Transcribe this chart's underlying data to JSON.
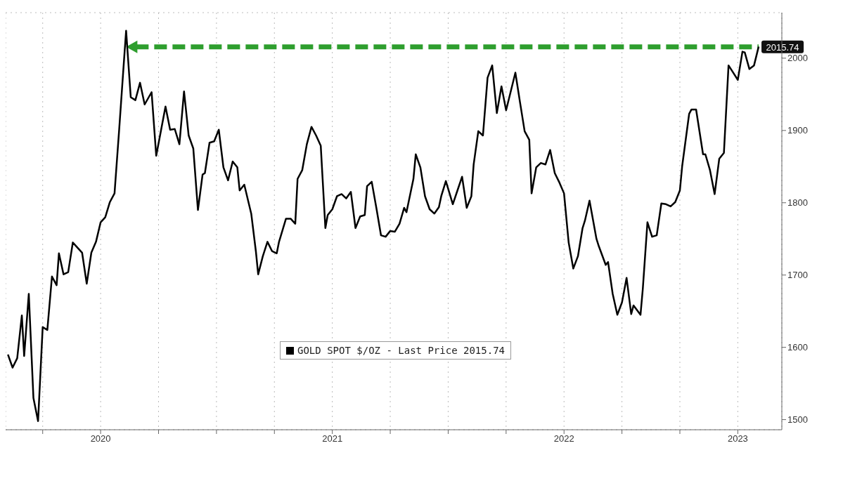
{
  "chart_data": {
    "type": "line",
    "x": [
      2020.1,
      2020.12,
      2020.14,
      2020.16,
      2020.17,
      2020.19,
      2020.21,
      2020.23,
      2020.25,
      2020.27,
      2020.29,
      2020.31,
      2020.32,
      2020.34,
      2020.36,
      2020.38,
      2020.42,
      2020.44,
      2020.46,
      2020.48,
      2020.5,
      2020.52,
      2020.54,
      2020.56,
      2020.58,
      2020.6,
      2020.61,
      2020.63,
      2020.65,
      2020.67,
      2020.69,
      2020.72,
      2020.74,
      2020.78,
      2020.8,
      2020.82,
      2020.84,
      2020.86,
      2020.88,
      2020.9,
      2020.92,
      2020.94,
      2020.95,
      2020.97,
      2020.99,
      2021.01,
      2021.03,
      2021.05,
      2021.07,
      2021.09,
      2021.1,
      2021.12,
      2021.15,
      2021.17,
      2021.18,
      2021.2,
      2021.22,
      2021.24,
      2021.26,
      2021.27,
      2021.3,
      2021.32,
      2021.34,
      2021.35,
      2021.37,
      2021.39,
      2021.41,
      2021.43,
      2021.45,
      2021.47,
      2021.48,
      2021.5,
      2021.52,
      2021.54,
      2021.56,
      2021.58,
      2021.6,
      2021.62,
      2021.64,
      2021.65,
      2021.67,
      2021.69,
      2021.71,
      2021.73,
      2021.75,
      2021.77,
      2021.79,
      2021.81,
      2021.82,
      2021.85,
      2021.86,
      2021.88,
      2021.9,
      2021.92,
      2021.94,
      2021.96,
      2021.97,
      2021.99,
      2022.02,
      2022.04,
      2022.06,
      2022.08,
      2022.1,
      2022.11,
      2022.13,
      2022.15,
      2022.17,
      2022.19,
      2022.21,
      2022.23,
      2022.25,
      2022.29,
      2022.31,
      2022.33,
      2022.35,
      2022.36,
      2022.38,
      2022.4,
      2022.42,
      2022.44,
      2022.46,
      2022.48,
      2022.5,
      2022.52,
      2022.54,
      2022.56,
      2022.58,
      2022.59,
      2022.61,
      2022.64,
      2022.65,
      2022.68,
      2022.69,
      2022.71,
      2022.73,
      2022.75,
      2022.77,
      2022.79,
      2022.8,
      2022.83,
      2022.84,
      2022.86,
      2022.88,
      2022.9,
      2022.92,
      2022.94,
      2022.96,
      2022.98,
      2023.0,
      2023.01,
      2023.04,
      2023.05,
      2023.07,
      2023.1,
      2023.11,
      2023.13,
      2023.15,
      2023.17,
      2023.19,
      2023.21,
      2023.23,
      2023.25,
      2023.27,
      2023.28,
      2023.3,
      2023.32,
      2023.34
    ],
    "series": [
      {
        "name": "GOLD SPOT $/OZ - Last Price 2015.74",
        "color": "#000000",
        "values": [
          1590,
          1572,
          1585,
          1644,
          1588,
          1674,
          1530,
          1498,
          1628,
          1624,
          1698,
          1686,
          1730,
          1701,
          1704,
          1745,
          1731,
          1688,
          1731,
          1746,
          1773,
          1780,
          1801,
          1813,
          1901,
          1993,
          2038,
          1946,
          1942,
          1966,
          1936,
          1953,
          1865,
          1933,
          1901,
          1902,
          1881,
          1954,
          1893,
          1875,
          1790,
          1839,
          1841,
          1883,
          1885,
          1901,
          1849,
          1831,
          1857,
          1849,
          1817,
          1825,
          1785,
          1733,
          1701,
          1726,
          1746,
          1733,
          1730,
          1746,
          1778,
          1778,
          1771,
          1833,
          1845,
          1881,
          1905,
          1893,
          1879,
          1765,
          1783,
          1791,
          1809,
          1812,
          1806,
          1815,
          1765,
          1781,
          1783,
          1823,
          1829,
          1793,
          1755,
          1753,
          1761,
          1760,
          1771,
          1793,
          1787,
          1833,
          1867,
          1849,
          1809,
          1791,
          1785,
          1794,
          1809,
          1830,
          1798,
          1817,
          1836,
          1793,
          1809,
          1853,
          1899,
          1893,
          1973,
          1990,
          1924,
          1961,
          1928,
          1980,
          1939,
          1899,
          1887,
          1813,
          1849,
          1855,
          1853,
          1873,
          1841,
          1828,
          1813,
          1745,
          1709,
          1726,
          1765,
          1775,
          1803,
          1750,
          1740,
          1714,
          1718,
          1674,
          1645,
          1662,
          1696,
          1646,
          1658,
          1645,
          1681,
          1773,
          1753,
          1755,
          1799,
          1798,
          1795,
          1801,
          1817,
          1851,
          1923,
          1929,
          1929,
          1867,
          1867,
          1845,
          1812,
          1861,
          1869,
          1990,
          1980,
          1970,
          2009,
          2008,
          1985,
          1990,
          2016
        ]
      }
    ],
    "xlim": [
      2020.09,
      2023.44
    ],
    "xticks": [
      {
        "value": 2020.25,
        "label": null
      },
      {
        "value": 2020.5,
        "label": "2020"
      },
      {
        "value": 2020.75,
        "label": null
      },
      {
        "value": 2021,
        "label": null
      },
      {
        "value": 2021.25,
        "label": null
      },
      {
        "value": 2021.5,
        "label": "2021"
      },
      {
        "value": 2021.75,
        "label": null
      },
      {
        "value": 2022,
        "label": null
      },
      {
        "value": 2022.25,
        "label": null
      },
      {
        "value": 2022.5,
        "label": "2022"
      },
      {
        "value": 2022.75,
        "label": null
      },
      {
        "value": 2023,
        "label": null
      },
      {
        "value": 2023.25,
        "label": "2023"
      }
    ],
    "ylim": [
      1486,
      2063
    ],
    "yticks": [
      1500,
      1600,
      1700,
      1800,
      1900,
      2000
    ],
    "grid": true,
    "legend": "bottom",
    "ref_lines": [
      {
        "axis": "y",
        "value": 2015.74,
        "label": "2015.74",
        "color": "#2e9e2e",
        "line_style": "dashed"
      }
    ]
  }
}
